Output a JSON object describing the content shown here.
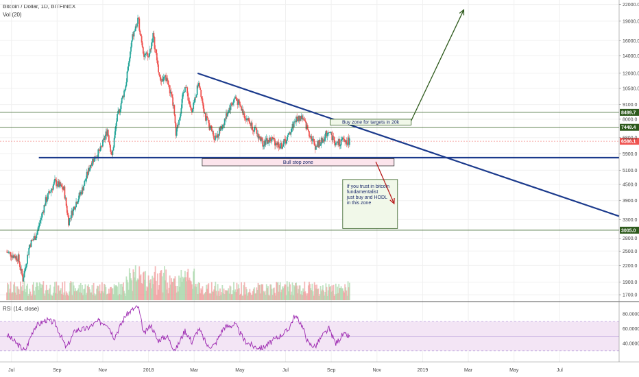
{
  "header": {
    "symbol_line": "Bitcoin / Dollar, 1D, BITFINEX",
    "volume_label": "Vol (20)",
    "rsi_label": "RSI (14, close)"
  },
  "chart_data": {
    "type": "candlestick",
    "series_name": "Bitcoin / Dollar",
    "y_scale": "log",
    "price_ticks": [
      22000,
      19000,
      16000,
      14000,
      12000,
      10500,
      9100,
      8000,
      6800,
      5900,
      5100,
      4500,
      3900,
      3300,
      2800,
      2500,
      2200,
      1900,
      1700
    ],
    "price_tick_labels": [
      "22000.0",
      "19000.0",
      "16000.0",
      "14000.0",
      "12000.0",
      "10500.0",
      "9100.0",
      "8000.0",
      "6800.0",
      "5900.0",
      "5100.0",
      "4500.0",
      "3900.0",
      "3300.0",
      "2800.0",
      "2500.0",
      "2200.0",
      "1900.0",
      "1700.0"
    ],
    "time_ticks": [
      "Jul",
      "Sep",
      "Nov",
      "2018",
      "Mar",
      "May",
      "Jul",
      "Sep",
      "Nov",
      "2019",
      "Mar",
      "May",
      "Jul"
    ],
    "time_tick_months_from_2017_06_01": [
      1,
      3,
      5,
      7,
      9,
      11,
      13,
      15,
      17,
      19,
      21,
      23,
      25
    ],
    "x_range_months_from_2017_06_01": [
      0.5,
      27.6
    ],
    "price_path": [
      {
        "m": 0.8,
        "p": 2480
      },
      {
        "m": 1.3,
        "p": 2350
      },
      {
        "m": 1.5,
        "p": 1950
      },
      {
        "m": 1.8,
        "p": 2650
      },
      {
        "m": 2.1,
        "p": 2900
      },
      {
        "m": 2.5,
        "p": 3900
      },
      {
        "m": 2.9,
        "p": 4600
      },
      {
        "m": 3.3,
        "p": 4300
      },
      {
        "m": 3.5,
        "p": 3250
      },
      {
        "m": 3.8,
        "p": 3800
      },
      {
        "m": 4.1,
        "p": 4300
      },
      {
        "m": 4.5,
        "p": 5500
      },
      {
        "m": 4.9,
        "p": 6100
      },
      {
        "m": 5.2,
        "p": 7300
      },
      {
        "m": 5.4,
        "p": 5700
      },
      {
        "m": 5.6,
        "p": 7900
      },
      {
        "m": 6.0,
        "p": 10800
      },
      {
        "m": 6.3,
        "p": 16500
      },
      {
        "m": 6.55,
        "p": 19200
      },
      {
        "m": 6.8,
        "p": 14200
      },
      {
        "m": 7.0,
        "p": 13800
      },
      {
        "m": 7.2,
        "p": 16800
      },
      {
        "m": 7.5,
        "p": 11300
      },
      {
        "m": 7.8,
        "p": 11500
      },
      {
        "m": 8.1,
        "p": 8900
      },
      {
        "m": 8.2,
        "p": 6900
      },
      {
        "m": 8.6,
        "p": 10900
      },
      {
        "m": 8.9,
        "p": 8400
      },
      {
        "m": 9.2,
        "p": 11200
      },
      {
        "m": 9.5,
        "p": 8100
      },
      {
        "m": 9.9,
        "p": 6800
      },
      {
        "m": 10.2,
        "p": 7400
      },
      {
        "m": 10.5,
        "p": 8700
      },
      {
        "m": 10.8,
        "p": 9700
      },
      {
        "m": 11.2,
        "p": 8300
      },
      {
        "m": 11.6,
        "p": 7400
      },
      {
        "m": 12.0,
        "p": 6500
      },
      {
        "m": 12.4,
        "p": 6700
      },
      {
        "m": 12.8,
        "p": 6300
      },
      {
        "m": 13.1,
        "p": 6800
      },
      {
        "m": 13.4,
        "p": 7900
      },
      {
        "m": 13.7,
        "p": 8200
      },
      {
        "m": 14.0,
        "p": 7200
      },
      {
        "m": 14.3,
        "p": 6300
      },
      {
        "m": 14.6,
        "p": 6600
      },
      {
        "m": 14.9,
        "p": 7300
      },
      {
        "m": 15.2,
        "p": 6400
      },
      {
        "m": 15.5,
        "p": 6600
      },
      {
        "m": 15.8,
        "p": 6586
      }
    ],
    "rsi_ticks": [
      80,
      60,
      40
    ],
    "rsi_tick_labels": [
      "80.0000",
      "60.0000",
      "40.0000"
    ],
    "rsi_band": [
      30,
      70
    ],
    "rsi_path": [
      {
        "m": 0.8,
        "p": 52
      },
      {
        "m": 1.3,
        "p": 38
      },
      {
        "m": 1.6,
        "p": 30
      },
      {
        "m": 2.0,
        "p": 62
      },
      {
        "m": 2.5,
        "p": 72
      },
      {
        "m": 2.9,
        "p": 68
      },
      {
        "m": 3.4,
        "p": 34
      },
      {
        "m": 3.8,
        "p": 58
      },
      {
        "m": 4.3,
        "p": 60
      },
      {
        "m": 4.8,
        "p": 70
      },
      {
        "m": 5.2,
        "p": 67
      },
      {
        "m": 5.5,
        "p": 48
      },
      {
        "m": 6.0,
        "p": 78
      },
      {
        "m": 6.3,
        "p": 86
      },
      {
        "m": 6.55,
        "p": 90
      },
      {
        "m": 6.8,
        "p": 52
      },
      {
        "m": 7.1,
        "p": 66
      },
      {
        "m": 7.4,
        "p": 44
      },
      {
        "m": 7.8,
        "p": 50
      },
      {
        "m": 8.1,
        "p": 34
      },
      {
        "m": 8.2,
        "p": 32
      },
      {
        "m": 8.6,
        "p": 58
      },
      {
        "m": 8.9,
        "p": 42
      },
      {
        "m": 9.2,
        "p": 60
      },
      {
        "m": 9.6,
        "p": 36
      },
      {
        "m": 9.9,
        "p": 38
      },
      {
        "m": 10.3,
        "p": 62
      },
      {
        "m": 10.8,
        "p": 66
      },
      {
        "m": 11.2,
        "p": 44
      },
      {
        "m": 11.6,
        "p": 36
      },
      {
        "m": 12.0,
        "p": 34
      },
      {
        "m": 12.5,
        "p": 45
      },
      {
        "m": 13.1,
        "p": 58
      },
      {
        "m": 13.4,
        "p": 78
      },
      {
        "m": 13.7,
        "p": 66
      },
      {
        "m": 14.0,
        "p": 40
      },
      {
        "m": 14.3,
        "p": 36
      },
      {
        "m": 14.6,
        "p": 50
      },
      {
        "m": 14.9,
        "p": 60
      },
      {
        "m": 15.2,
        "p": 40
      },
      {
        "m": 15.5,
        "p": 52
      },
      {
        "m": 15.8,
        "p": 50
      }
    ],
    "horizontal_levels": [
      {
        "price": 8499.7,
        "label": "8499.7",
        "color": "#2e5a1c"
      },
      {
        "price": 7448.4,
        "label": "7448.4",
        "color": "#2e5a1c"
      },
      {
        "price": 3005.0,
        "label": "3005.0",
        "color": "#2e5a1c"
      }
    ],
    "last_price": {
      "price": 6586.1,
      "label": "6586.1",
      "color": "#ef5350"
    },
    "support_line": {
      "price": 5700,
      "color": "#1b3a8c"
    },
    "trendline": {
      "start": {
        "m": 9.15,
        "p": 12000
      },
      "end": {
        "m": 27.6,
        "p": 3400
      },
      "color": "#1b3a8c"
    },
    "annotations": {
      "buy_zone": {
        "text": "Buy zone for targets in 20k",
        "price_high": 8000,
        "price_low": 7600,
        "m_start": 14.95,
        "m_end": 18.5
      },
      "bull_stop": {
        "text": "Bull stop zone",
        "price_high": 5650,
        "price_low": 5300,
        "m_start": 9.35,
        "m_end": 17.75
      },
      "hodl_note": {
        "lines": [
          "If you trust in bitcoin",
          "fundamentalist",
          "just buy and HODL",
          "  in this zone"
        ],
        "price_high": 4700,
        "price_low": 3050,
        "m_start": 15.5,
        "m_end": 17.9
      },
      "up_arrow": {
        "from": {
          "m": 18.5,
          "p": 7900
        },
        "to": {
          "m": 20.8,
          "p": 21000
        },
        "color": "#2e5a1c"
      },
      "down_arrow": {
        "from": {
          "m": 16.95,
          "p": 5500
        },
        "to": {
          "m": 17.75,
          "p": 3800
        },
        "color": "#b71c1c"
      }
    },
    "colors": {
      "up": "#26a69a",
      "down": "#ef5350",
      "rsi_line": "#9c27b0",
      "rsi_band_fill": "#f3e5f5",
      "volume_up": "#a5d6a7",
      "volume_down": "#ef9a9a"
    }
  }
}
